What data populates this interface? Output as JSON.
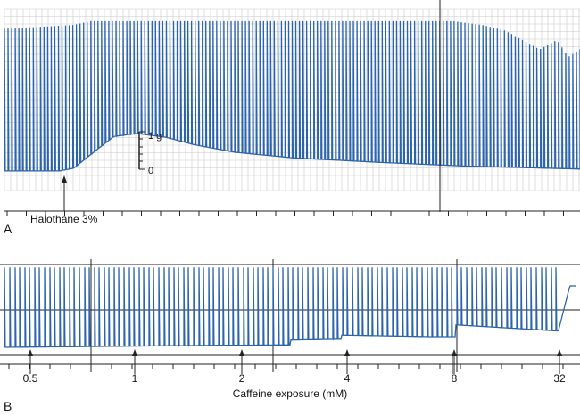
{
  "colors": {
    "trace": "#2b63ad",
    "grid": "#c9c9c9",
    "axis": "#222222",
    "background": "#ffffff"
  },
  "chart_data": [
    {
      "panel_label": "A",
      "type": "line",
      "description_kind": "muscle contracture recording",
      "stimulus_label": "Halothane 3%",
      "scale_bar": {
        "top_label": "1 g",
        "bottom_label": "0"
      },
      "grid": true,
      "twitch_count": 160,
      "baseline": [
        [
          0.0,
          0.05
        ],
        [
          0.095,
          0.05
        ],
        [
          0.12,
          0.12
        ],
        [
          0.155,
          0.55
        ],
        [
          0.19,
          0.97
        ],
        [
          0.23,
          1.05
        ],
        [
          0.28,
          0.95
        ],
        [
          0.33,
          0.75
        ],
        [
          0.4,
          0.55
        ],
        [
          0.5,
          0.4
        ],
        [
          0.65,
          0.28
        ],
        [
          0.8,
          0.18
        ],
        [
          1.0,
          0.1
        ]
      ],
      "peak": [
        [
          0.0,
          3.85
        ],
        [
          0.12,
          3.95
        ],
        [
          0.15,
          4.05
        ],
        [
          0.5,
          4.05
        ],
        [
          0.78,
          4.05
        ],
        [
          0.83,
          3.95
        ],
        [
          0.87,
          3.8
        ],
        [
          0.9,
          3.55
        ],
        [
          0.93,
          3.3
        ],
        [
          0.96,
          3.55
        ],
        [
          0.98,
          3.1
        ],
        [
          1.0,
          3.3
        ]
      ],
      "stimulus_at": 0.1
    },
    {
      "panel_label": "B",
      "type": "line",
      "description_kind": "muscle contracture recording",
      "xlabel": "Caffeine exposure (mM)",
      "ticks": [
        "0.5",
        "1",
        "2",
        "4",
        "8",
        "32"
      ],
      "twitch_count": 115,
      "baseline_steps": [
        {
          "from": 0.0,
          "to": 0.38,
          "start": 0.0,
          "end": 0.05
        },
        {
          "from": 0.38,
          "to": 0.5,
          "start": 0.05,
          "end": 0.06
        },
        {
          "from": 0.5,
          "to": 0.59,
          "start": 0.18,
          "end": 0.2
        },
        {
          "from": 0.59,
          "to": 0.75,
          "start": 0.3,
          "end": 0.26
        },
        {
          "from": 0.75,
          "to": 0.79,
          "start": 0.26,
          "end": 0.26
        },
        {
          "from": 0.79,
          "to": 0.97,
          "start": 0.55,
          "end": 0.4
        },
        {
          "from": 0.97,
          "to": 0.99,
          "start": 0.4,
          "end": 1.5
        }
      ],
      "peak_level": 1.95
    }
  ]
}
